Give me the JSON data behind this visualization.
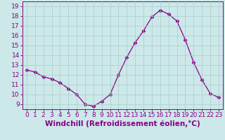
{
  "x": [
    0,
    1,
    2,
    3,
    4,
    5,
    6,
    7,
    8,
    9,
    10,
    11,
    12,
    13,
    14,
    15,
    16,
    17,
    18,
    19,
    20,
    21,
    22,
    23
  ],
  "y": [
    12.5,
    12.3,
    11.8,
    11.6,
    11.2,
    10.6,
    10.0,
    9.0,
    8.8,
    9.3,
    10.0,
    12.0,
    13.8,
    15.3,
    16.5,
    17.9,
    18.6,
    18.2,
    17.5,
    15.6,
    13.3,
    11.5,
    10.1,
    9.7
  ],
  "line_color": "#880088",
  "marker": "D",
  "marker_size": 2.5,
  "bg_color": "#cce8e8",
  "grid_color": "#aacccc",
  "xlabel": "Windchill (Refroidissement éolien,°C)",
  "xlabel_color": "#880088",
  "ylim": [
    8.5,
    19.5
  ],
  "xlim": [
    -0.5,
    23.5
  ],
  "yticks": [
    9,
    10,
    11,
    12,
    13,
    14,
    15,
    16,
    17,
    18,
    19
  ],
  "xticks": [
    0,
    1,
    2,
    3,
    4,
    5,
    6,
    7,
    8,
    9,
    10,
    11,
    12,
    13,
    14,
    15,
    16,
    17,
    18,
    19,
    20,
    21,
    22,
    23
  ],
  "tick_color": "#880088",
  "tick_label_fontsize": 6.5,
  "xlabel_fontsize": 7.5
}
